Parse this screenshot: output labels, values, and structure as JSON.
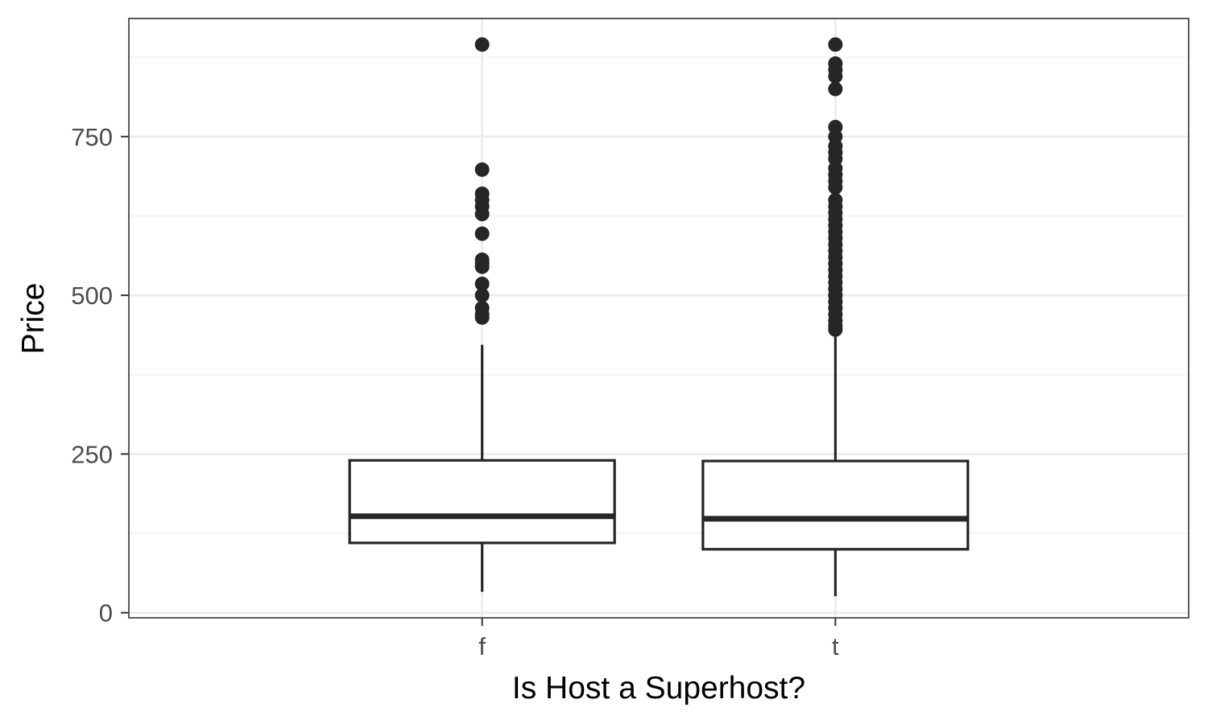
{
  "chart_data": {
    "type": "boxplot",
    "xlabel": "Is Host a Superhost?",
    "ylabel": "Price",
    "categories": [
      "f",
      "t"
    ],
    "ylim": [
      -8,
      936
    ],
    "yticks": [
      0,
      250,
      500,
      750
    ],
    "grid": true,
    "theme": {
      "box_fill": "#ffffff",
      "line": "#262626",
      "grid_major": "#ebebeb",
      "grid_minor": "#f2f2f2",
      "panel_border": "#333333"
    },
    "boxes": [
      {
        "category": "f",
        "q1": 110,
        "median": 152,
        "q3": 240,
        "whisker_low": 33,
        "whisker_high": 422,
        "outliers": [
          895,
          698,
          660,
          650,
          640,
          628,
          597,
          556,
          550,
          545,
          518,
          500,
          480,
          470,
          465
        ]
      },
      {
        "category": "t",
        "q1": 100,
        "median": 148,
        "q3": 239,
        "whisker_low": 26,
        "whisker_high": 443,
        "outliers": [
          895,
          865,
          855,
          845,
          825,
          765,
          750,
          735,
          725,
          715,
          700,
          690,
          680,
          670,
          650,
          640,
          630,
          620,
          610,
          600,
          590,
          580,
          570,
          560,
          550,
          540,
          530,
          520,
          510,
          500,
          490,
          480,
          470,
          460,
          452,
          446
        ]
      }
    ]
  }
}
